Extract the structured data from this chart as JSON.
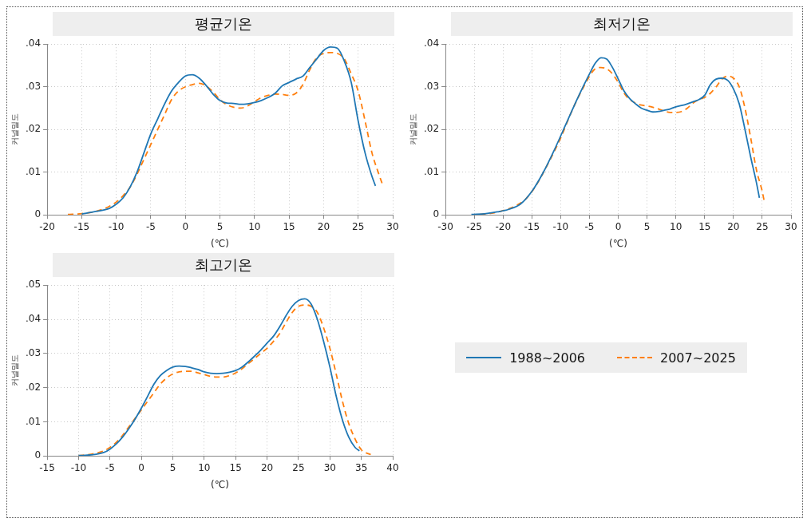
{
  "chart_data": [
    {
      "type": "line",
      "title": "평균기온",
      "xlabel": "(℃)",
      "ylabel": "커널밀도",
      "xlim": [
        -20,
        30
      ],
      "xticks": [
        -20,
        -15,
        -10,
        -5,
        0,
        5,
        10,
        15,
        20,
        25,
        30
      ],
      "ylim": [
        0,
        0.04
      ],
      "yticks": [
        {
          "value": 0,
          "label": "0"
        },
        {
          "value": 0.01,
          "label": ".01"
        },
        {
          "value": 0.02,
          "label": ".02"
        },
        {
          "value": 0.03,
          "label": ".03"
        },
        {
          "value": 0.04,
          "label": ".04"
        }
      ],
      "grid": true,
      "series": [
        {
          "color": "#1f77b4",
          "line_style": "solid",
          "x": [
            -15,
            -13,
            -11,
            -10,
            -9,
            -8,
            -7,
            -6,
            -5,
            -4,
            -3,
            -2,
            -1,
            0,
            1,
            2,
            3,
            4,
            5,
            6,
            7,
            8,
            9,
            10,
            11,
            12,
            13,
            14,
            15,
            16,
            17,
            18,
            19,
            20,
            21,
            22,
            23,
            24,
            25,
            26,
            27,
            27.5
          ],
          "values": [
            0.0002,
            0.0008,
            0.0015,
            0.0025,
            0.004,
            0.0065,
            0.01,
            0.0145,
            0.019,
            0.0225,
            0.026,
            0.029,
            0.031,
            0.0325,
            0.0328,
            0.032,
            0.0303,
            0.0283,
            0.0268,
            0.0262,
            0.0261,
            0.0259,
            0.026,
            0.0263,
            0.0268,
            0.0275,
            0.0285,
            0.0302,
            0.031,
            0.0318,
            0.0325,
            0.0345,
            0.0365,
            0.0385,
            0.0393,
            0.039,
            0.036,
            0.031,
            0.022,
            0.0145,
            0.009,
            0.0068
          ]
        },
        {
          "color": "#ff7f0e",
          "line_style": "dashed",
          "x": [
            -17,
            -15,
            -13,
            -11,
            -10,
            -9,
            -8,
            -7,
            -6,
            -5,
            -4,
            -3,
            -2,
            -1,
            0,
            1,
            2,
            3,
            4,
            5,
            6,
            7,
            8,
            9,
            10,
            11,
            12,
            13,
            14,
            15,
            16,
            17,
            18,
            19,
            20,
            21,
            22,
            23,
            24,
            25,
            26,
            27,
            28,
            28.5
          ],
          "values": [
            0.0001,
            0.0003,
            0.0008,
            0.002,
            0.003,
            0.0045,
            0.0065,
            0.0095,
            0.013,
            0.0165,
            0.02,
            0.0235,
            0.027,
            0.029,
            0.03,
            0.0305,
            0.0308,
            0.0302,
            0.0288,
            0.027,
            0.0258,
            0.0252,
            0.025,
            0.0255,
            0.0265,
            0.0275,
            0.028,
            0.0283,
            0.0282,
            0.028,
            0.0285,
            0.0305,
            0.034,
            0.0368,
            0.0378,
            0.038,
            0.0378,
            0.0365,
            0.033,
            0.029,
            0.022,
            0.0145,
            0.0095,
            0.0072
          ]
        }
      ]
    },
    {
      "type": "line",
      "title": "최저기온",
      "xlabel": "(℃)",
      "ylabel": "커널밀도",
      "xlim": [
        -30,
        30
      ],
      "xticks": [
        -30,
        -25,
        -20,
        -15,
        -10,
        -5,
        0,
        5,
        10,
        15,
        20,
        25,
        30
      ],
      "ylim": [
        0,
        0.04
      ],
      "yticks": [
        {
          "value": 0,
          "label": "0"
        },
        {
          "value": 0.01,
          "label": ".01"
        },
        {
          "value": 0.02,
          "label": ".02"
        },
        {
          "value": 0.03,
          "label": ".03"
        },
        {
          "value": 0.04,
          "label": ".04"
        }
      ],
      "grid": true,
      "series": [
        {
          "color": "#1f77b4",
          "line_style": "solid",
          "x": [
            -25.5,
            -23,
            -21,
            -19,
            -17,
            -15,
            -13,
            -11,
            -9,
            -7,
            -5,
            -4,
            -3,
            -2,
            -1,
            0,
            1,
            2,
            3,
            4,
            5,
            6,
            7,
            8,
            9,
            10,
            11,
            12,
            13,
            14,
            15,
            16,
            17,
            18,
            19,
            20,
            21,
            22,
            23,
            24,
            24.5
          ],
          "values": [
            0.0001,
            0.0003,
            0.0007,
            0.0013,
            0.0025,
            0.0055,
            0.01,
            0.0155,
            0.0215,
            0.0275,
            0.033,
            0.0355,
            0.0368,
            0.0365,
            0.0345,
            0.0318,
            0.029,
            0.0272,
            0.026,
            0.025,
            0.0245,
            0.0241,
            0.0242,
            0.0245,
            0.0248,
            0.0253,
            0.0256,
            0.026,
            0.0265,
            0.027,
            0.028,
            0.0305,
            0.0318,
            0.032,
            0.0315,
            0.0295,
            0.026,
            0.02,
            0.0135,
            0.0075,
            0.004
          ]
        },
        {
          "color": "#ff7f0e",
          "line_style": "dashed",
          "x": [
            -24,
            -22,
            -20,
            -18,
            -16,
            -14,
            -12,
            -10,
            -8,
            -6,
            -4,
            -3,
            -2,
            -1,
            0,
            1,
            2,
            3,
            4,
            5,
            6,
            7,
            8,
            9,
            10,
            11,
            12,
            13,
            14,
            15,
            16,
            17,
            18,
            19,
            20,
            21,
            22,
            23,
            24,
            25,
            25.3
          ],
          "values": [
            0.0001,
            0.0004,
            0.001,
            0.002,
            0.0038,
            0.0075,
            0.0125,
            0.018,
            0.0245,
            0.03,
            0.0342,
            0.0345,
            0.0342,
            0.033,
            0.031,
            0.0285,
            0.027,
            0.0262,
            0.0257,
            0.0255,
            0.0252,
            0.0248,
            0.0243,
            0.024,
            0.024,
            0.0242,
            0.025,
            0.0262,
            0.027,
            0.0275,
            0.0285,
            0.03,
            0.0318,
            0.0325,
            0.032,
            0.03,
            0.025,
            0.018,
            0.0105,
            0.0055,
            0.0035
          ]
        }
      ]
    },
    {
      "type": "line",
      "title": "최고기온",
      "xlabel": "(℃)",
      "ylabel": "커널밀도",
      "xlim": [
        -15,
        40
      ],
      "xticks": [
        -15,
        -10,
        -5,
        0,
        5,
        10,
        15,
        20,
        25,
        30,
        35,
        40
      ],
      "ylim": [
        0,
        0.05
      ],
      "yticks": [
        {
          "value": 0,
          "label": "0"
        },
        {
          "value": 0.01,
          "label": ".01"
        },
        {
          "value": 0.02,
          "label": ".02"
        },
        {
          "value": 0.03,
          "label": ".03"
        },
        {
          "value": 0.04,
          "label": ".04"
        },
        {
          "value": 0.05,
          "label": ".05"
        }
      ],
      "grid": true,
      "legend": "right",
      "series": [
        {
          "name": "1988~2006",
          "color": "#1f77b4",
          "line_style": "solid",
          "x": [
            -10,
            -8,
            -6,
            -5,
            -4,
            -3,
            -2,
            -1,
            0,
            1,
            2,
            3,
            4,
            5,
            6,
            7,
            8,
            9,
            10,
            11,
            12,
            13,
            14,
            15,
            16,
            17,
            18,
            19,
            20,
            21,
            22,
            23,
            24,
            25,
            26,
            27,
            28,
            29,
            30,
            31,
            32,
            33,
            34,
            34.7
          ],
          "values": [
            0.0001,
            0.0003,
            0.001,
            0.002,
            0.0035,
            0.0055,
            0.008,
            0.0108,
            0.014,
            0.0175,
            0.021,
            0.0235,
            0.025,
            0.026,
            0.0263,
            0.0262,
            0.0258,
            0.0253,
            0.0246,
            0.0242,
            0.0241,
            0.0242,
            0.0245,
            0.025,
            0.026,
            0.0275,
            0.0292,
            0.031,
            0.033,
            0.035,
            0.0378,
            0.041,
            0.0438,
            0.0455,
            0.046,
            0.0445,
            0.04,
            0.0335,
            0.026,
            0.0175,
            0.0105,
            0.0055,
            0.0025,
            0.0015
          ]
        },
        {
          "name": "2007~2025",
          "color": "#ff7f0e",
          "line_style": "dashed",
          "x": [
            -10,
            -8,
            -6,
            -5,
            -4,
            -3,
            -2,
            -1,
            0,
            1,
            2,
            3,
            4,
            5,
            6,
            7,
            8,
            9,
            10,
            11,
            12,
            13,
            14,
            15,
            16,
            17,
            18,
            19,
            20,
            21,
            22,
            23,
            24,
            25,
            26,
            27,
            28,
            29,
            30,
            31,
            32,
            33,
            34,
            35,
            36.5
          ],
          "values": [
            0.0001,
            0.0005,
            0.0015,
            0.0025,
            0.004,
            0.006,
            0.0085,
            0.011,
            0.0135,
            0.016,
            0.0185,
            0.021,
            0.0228,
            0.024,
            0.0246,
            0.0248,
            0.0248,
            0.0243,
            0.0238,
            0.0233,
            0.0231,
            0.0231,
            0.0235,
            0.0243,
            0.0255,
            0.027,
            0.0285,
            0.03,
            0.0315,
            0.0335,
            0.0358,
            0.039,
            0.042,
            0.0438,
            0.0442,
            0.0438,
            0.042,
            0.0375,
            0.0315,
            0.024,
            0.016,
            0.0095,
            0.005,
            0.0018,
            0.0004
          ]
        }
      ]
    }
  ]
}
